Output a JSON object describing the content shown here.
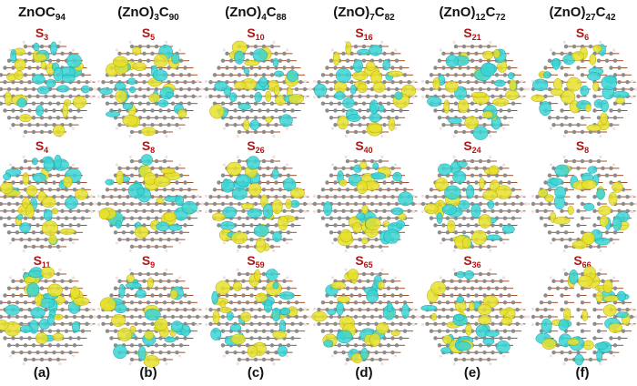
{
  "columns": [
    {
      "formula": [
        "ZnOC",
        "94"
      ],
      "states": [
        {
          "letter": "S",
          "index": "3"
        },
        {
          "letter": "S",
          "index": "4"
        },
        {
          "letter": "S",
          "index": "11"
        }
      ],
      "label": "(a)"
    },
    {
      "formula": [
        "(ZnO)",
        "3",
        "C",
        "90"
      ],
      "states": [
        {
          "letter": "S",
          "index": "5"
        },
        {
          "letter": "S",
          "index": "8"
        },
        {
          "letter": "S",
          "index": "9"
        }
      ],
      "label": "(b)"
    },
    {
      "formula": [
        "(ZnO)",
        "4",
        "C",
        "88"
      ],
      "states": [
        {
          "letter": "S",
          "index": "10"
        },
        {
          "letter": "S",
          "index": "26"
        },
        {
          "letter": "S",
          "index": "59"
        }
      ],
      "label": "(c)"
    },
    {
      "formula": [
        "(ZnO)",
        "7",
        "C",
        "82"
      ],
      "states": [
        {
          "letter": "S",
          "index": "16"
        },
        {
          "letter": "S",
          "index": "40"
        },
        {
          "letter": "S",
          "index": "65"
        }
      ],
      "label": "(d)"
    },
    {
      "formula": [
        "(ZnO)",
        "12",
        "C",
        "72"
      ],
      "states": [
        {
          "letter": "S",
          "index": "21"
        },
        {
          "letter": "S",
          "index": "24"
        },
        {
          "letter": "S",
          "index": "36"
        }
      ],
      "label": "(e)"
    },
    {
      "formula": [
        "(ZnO)",
        "27",
        "C",
        "42"
      ],
      "states": [
        {
          "letter": "S",
          "index": "6"
        },
        {
          "letter": "S",
          "index": "8"
        },
        {
          "letter": "S",
          "index": "66"
        }
      ],
      "label": "(f)"
    }
  ]
}
